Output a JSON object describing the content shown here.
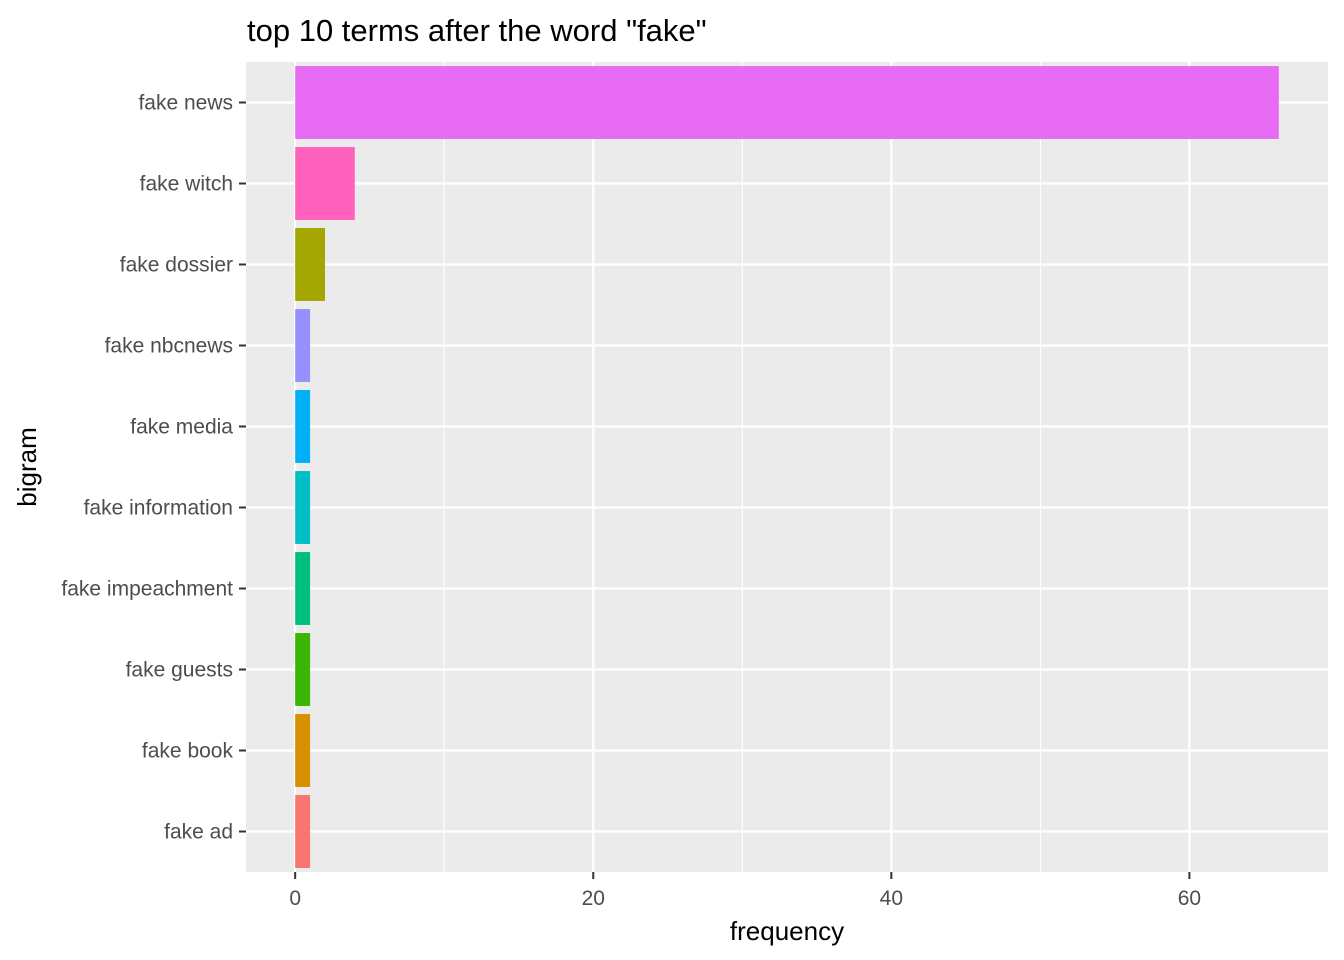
{
  "chart_data": {
    "type": "bar",
    "orientation": "horizontal",
    "title": "top 10 terms after the word \"fake\"",
    "xlabel": "frequency",
    "ylabel": "bigram",
    "categories": [
      "fake ad",
      "fake book",
      "fake guests",
      "fake impeachment",
      "fake information",
      "fake media",
      "fake nbcnews",
      "fake dossier",
      "fake witch",
      "fake news"
    ],
    "values": [
      1,
      1,
      1,
      1,
      1,
      1,
      1,
      2,
      4,
      66
    ],
    "colors": [
      "#F8766D",
      "#D89000",
      "#39B600",
      "#00BF7D",
      "#00BFC4",
      "#00B0F6",
      "#9590FF",
      "#A3A500",
      "#FF62BC",
      "#E76BF3"
    ],
    "xlim": [
      -3.3,
      69.3
    ],
    "x_ticks": [
      0,
      20,
      40,
      60
    ],
    "x_tick_labels": [
      "0",
      "20",
      "40",
      "60"
    ],
    "panel_background": "#EBEBEB",
    "grid": true,
    "legend": "none"
  }
}
